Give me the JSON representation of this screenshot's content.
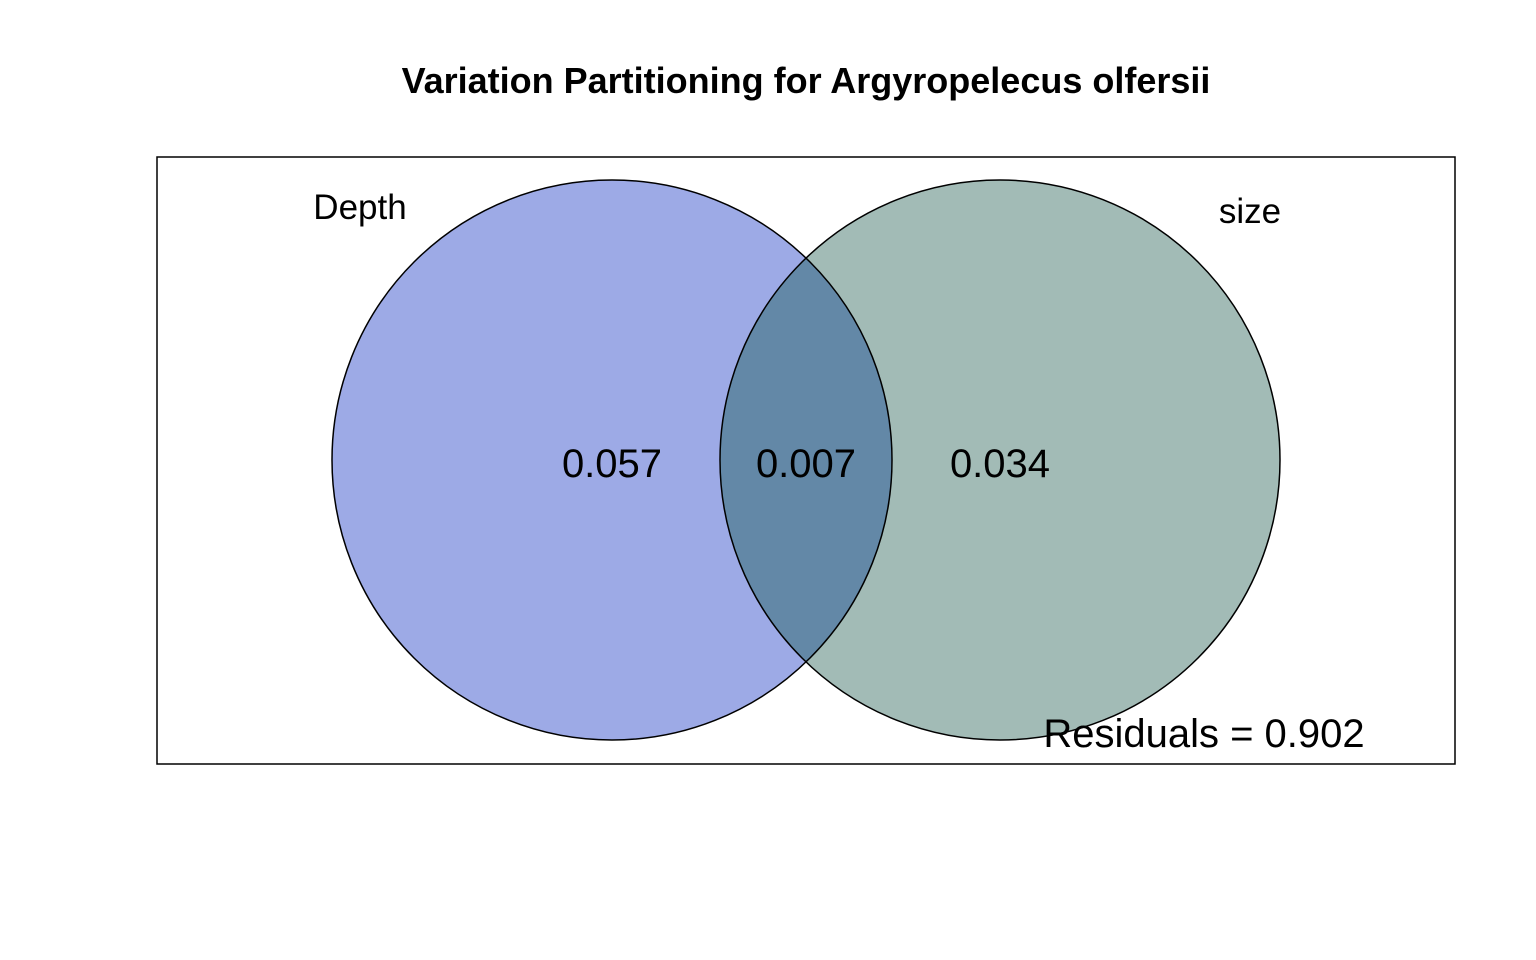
{
  "title": "Variation Partitioning for Argyropelecus olfersii",
  "sets": [
    {
      "label": "Depth",
      "unique_fraction": "0.057",
      "color": "#3f55cc"
    },
    {
      "label": "size",
      "unique_fraction": "0.034",
      "color": "#4a7a6a"
    }
  ],
  "shared_fraction": "0.007",
  "residuals_text": "Residuals = 0.902",
  "colors": {
    "depth_fill": "#9daae6",
    "size_fill": "#a2bbb6",
    "overlap_fill": "#6388a7",
    "outline": "#000000"
  }
}
